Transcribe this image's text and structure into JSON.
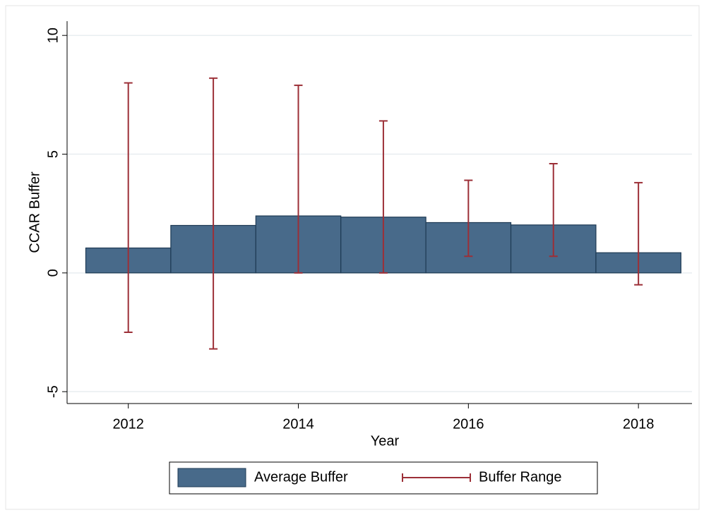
{
  "chart_data": {
    "type": "bar",
    "xlabel": "Year",
    "ylabel": "CCAR Buffer",
    "x": [
      2012,
      2013,
      2014,
      2015,
      2016,
      2017,
      2018
    ],
    "series": [
      {
        "name": "Average Buffer",
        "type": "bar",
        "color": "#486a8a",
        "values": [
          1.05,
          2.0,
          2.4,
          2.35,
          2.12,
          2.02,
          0.85
        ]
      },
      {
        "name": "Buffer Range",
        "type": "rcap",
        "color": "#9c2f37",
        "low": [
          -2.5,
          -3.2,
          0,
          0,
          0.7,
          0.7,
          -0.5
        ],
        "high": [
          8.0,
          8.2,
          7.9,
          6.4,
          3.9,
          4.6,
          3.8
        ]
      }
    ],
    "xlim": [
      2011.28,
      2018.63
    ],
    "xticks": [
      2012,
      2014,
      2016,
      2018
    ],
    "ylim": [
      -5.5,
      10.6
    ],
    "yticks": [
      -5,
      0,
      5,
      10
    ],
    "grid": true,
    "legend": "bottom"
  }
}
